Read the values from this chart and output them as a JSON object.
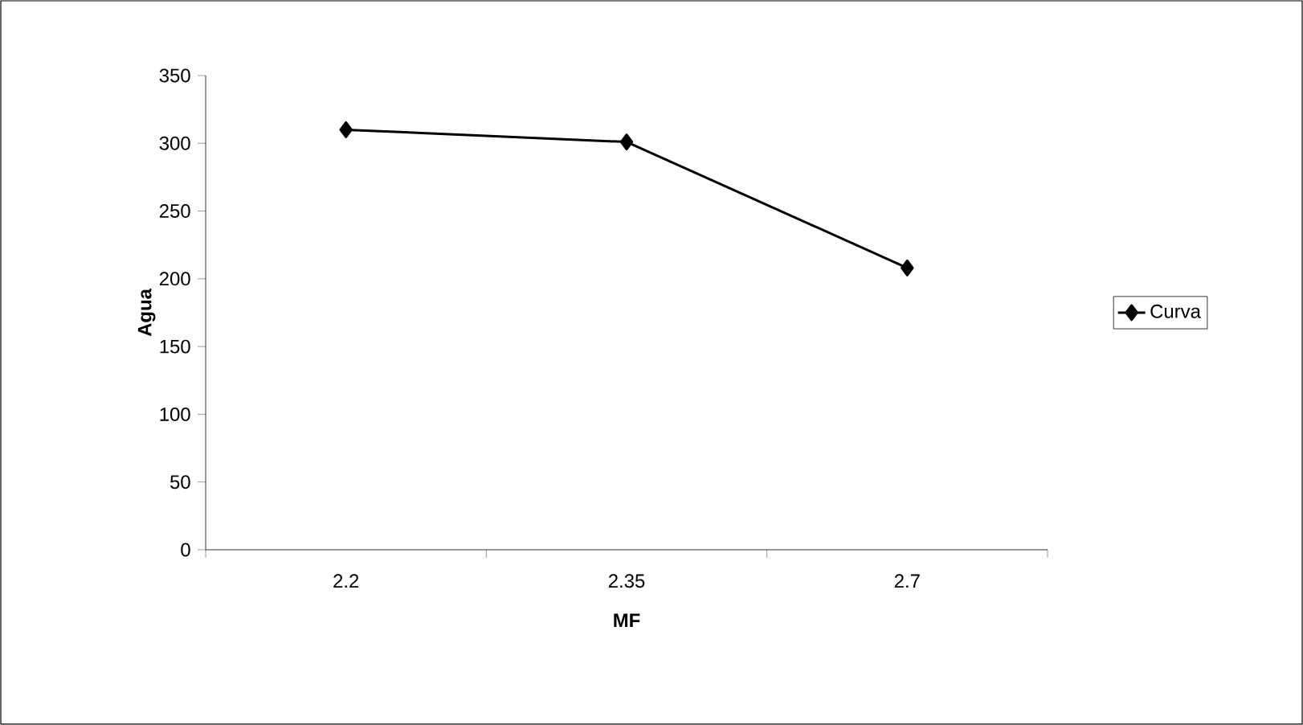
{
  "chart_data": {
    "type": "line",
    "xlabel": "MF",
    "ylabel": "Agua",
    "categories": [
      "2.2",
      "2.35",
      "2.7"
    ],
    "series": [
      {
        "name": "Curva",
        "color": "#000000",
        "values": [
          310,
          301,
          208
        ]
      }
    ],
    "ylim": [
      0,
      350
    ],
    "yticks": [
      0,
      50,
      100,
      150,
      200,
      250,
      300,
      350
    ],
    "marker": "diamond",
    "line_style": "solid",
    "legend": "right"
  }
}
